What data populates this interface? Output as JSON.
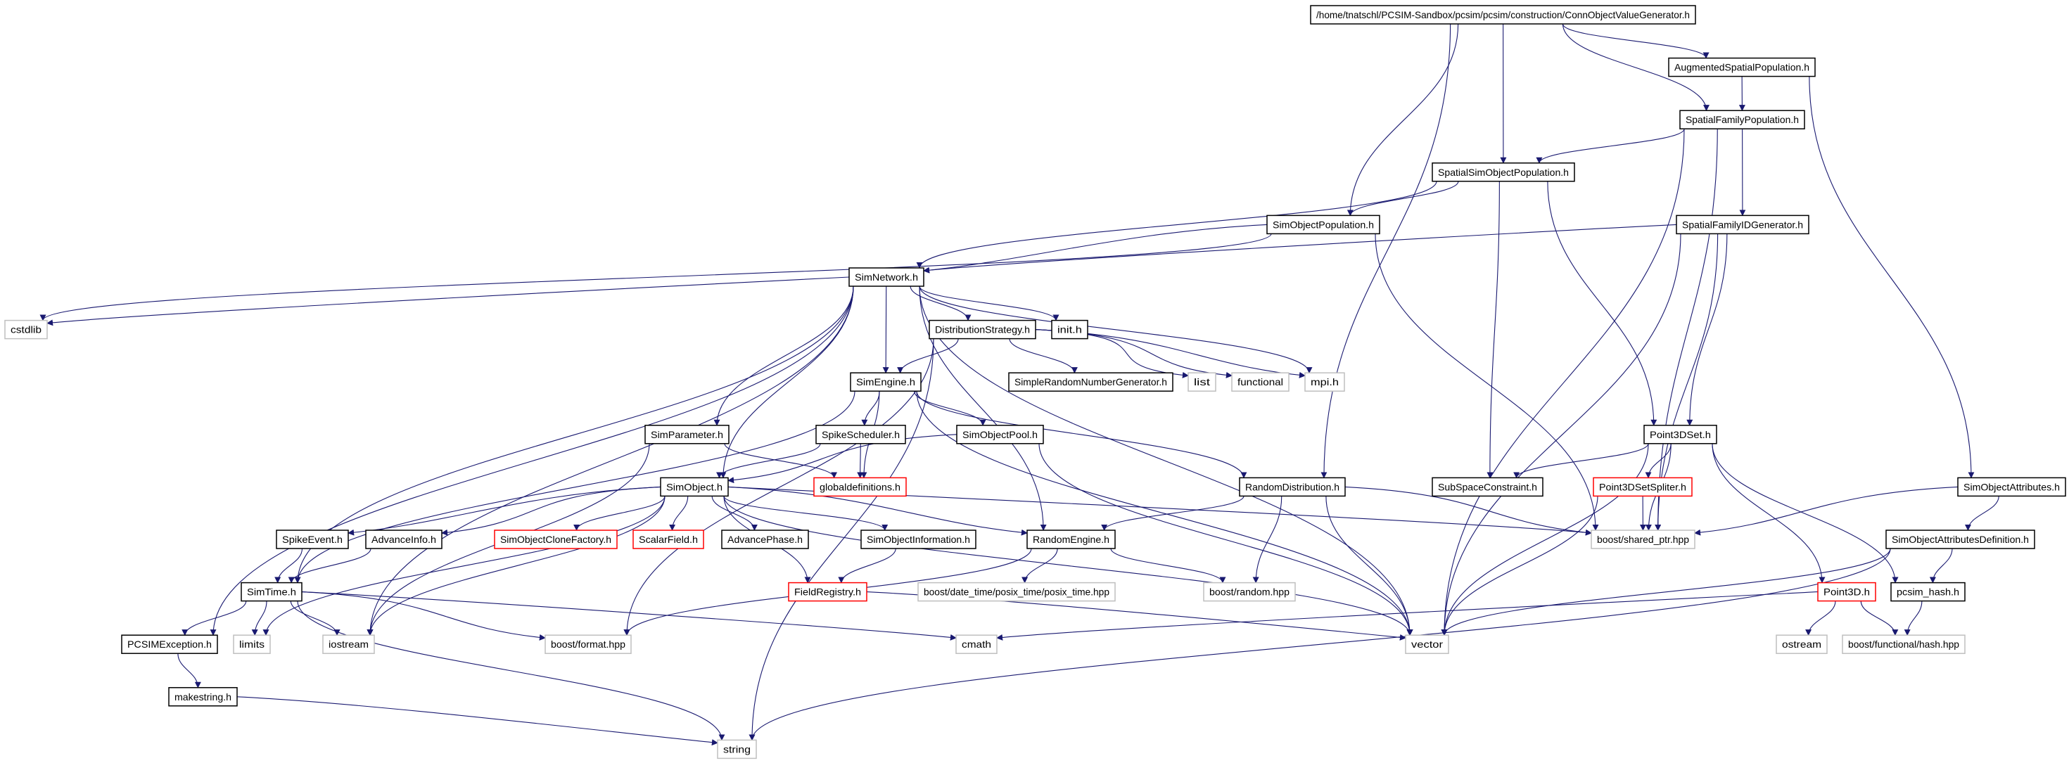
{
  "graph": {
    "colors": {
      "edge": "#191970",
      "root_fill": "#bfbfbf",
      "documented_border": "#000000",
      "incomplete_border": "#ff0000",
      "external_border": "#bfbfbf"
    },
    "nodes": [
      {
        "id": "root",
        "label": "/home/tnatschl/PCSIM-Sandbox/pcsim/pcsim/construction/ConnObjectValueGenerator.h",
        "style": "root"
      },
      {
        "id": "asp",
        "label": "AugmentedSpatialPopulation.h",
        "style": "documented"
      },
      {
        "id": "sfp",
        "label": "SpatialFamilyPopulation.h",
        "style": "documented"
      },
      {
        "id": "ssop",
        "label": "SpatialSimObjectPopulation.h",
        "style": "documented"
      },
      {
        "id": "sop",
        "label": "SimObjectPopulation.h",
        "style": "documented"
      },
      {
        "id": "sfig",
        "label": "SpatialFamilyIDGenerator.h",
        "style": "documented"
      },
      {
        "id": "simnet",
        "label": "SimNetwork.h",
        "style": "documented"
      },
      {
        "id": "cstdlib",
        "label": "cstdlib",
        "style": "external"
      },
      {
        "id": "dist",
        "label": "DistributionStrategy.h",
        "style": "documented"
      },
      {
        "id": "init",
        "label": "init.h",
        "style": "documented"
      },
      {
        "id": "simeng",
        "label": "SimEngine.h",
        "style": "documented"
      },
      {
        "id": "srng",
        "label": "SimpleRandomNumberGenerator.h",
        "style": "documented"
      },
      {
        "id": "list",
        "label": "list",
        "style": "external"
      },
      {
        "id": "functional",
        "label": "functional",
        "style": "external"
      },
      {
        "id": "mpi",
        "label": "mpi.h",
        "style": "external"
      },
      {
        "id": "simparam",
        "label": "SimParameter.h",
        "style": "documented"
      },
      {
        "id": "spikesched",
        "label": "SpikeScheduler.h",
        "style": "documented"
      },
      {
        "id": "sopool",
        "label": "SimObjectPool.h",
        "style": "documented"
      },
      {
        "id": "p3dset",
        "label": "Point3DSet.h",
        "style": "documented"
      },
      {
        "id": "simobj",
        "label": "SimObject.h",
        "style": "documented"
      },
      {
        "id": "globaldef",
        "label": "globaldefinitions.h",
        "style": "incomplete"
      },
      {
        "id": "randdist",
        "label": "RandomDistribution.h",
        "style": "documented"
      },
      {
        "id": "subspace",
        "label": "SubSpaceConstraint.h",
        "style": "documented"
      },
      {
        "id": "p3dspl",
        "label": "Point3DSetSpliter.h",
        "style": "incomplete"
      },
      {
        "id": "soattr",
        "label": "SimObjectAttributes.h",
        "style": "documented"
      },
      {
        "id": "spikeev",
        "label": "SpikeEvent.h",
        "style": "documented"
      },
      {
        "id": "advinfo",
        "label": "AdvanceInfo.h",
        "style": "documented"
      },
      {
        "id": "soclone",
        "label": "SimObjectCloneFactory.h",
        "style": "incomplete"
      },
      {
        "id": "scalar",
        "label": "ScalarField.h",
        "style": "incomplete"
      },
      {
        "id": "advphase",
        "label": "AdvancePhase.h",
        "style": "documented"
      },
      {
        "id": "soinfo",
        "label": "SimObjectInformation.h",
        "style": "documented"
      },
      {
        "id": "randeng",
        "label": "RandomEngine.h",
        "style": "documented"
      },
      {
        "id": "sharedptr",
        "label": "boost/shared_ptr.hpp",
        "style": "external"
      },
      {
        "id": "soattrdef",
        "label": "SimObjectAttributesDefinition.h",
        "style": "documented"
      },
      {
        "id": "simtime",
        "label": "SimTime.h",
        "style": "documented"
      },
      {
        "id": "fieldreg",
        "label": "FieldRegistry.h",
        "style": "incomplete"
      },
      {
        "id": "posix",
        "label": "boost/date_time/posix_time/posix_time.hpp",
        "style": "external"
      },
      {
        "id": "brandom",
        "label": "boost/random.hpp",
        "style": "external"
      },
      {
        "id": "p3d",
        "label": "Point3D.h",
        "style": "incomplete"
      },
      {
        "id": "pcsimhash",
        "label": "pcsim_hash.h",
        "style": "documented"
      },
      {
        "id": "pcsimexc",
        "label": "PCSIMException.h",
        "style": "documented"
      },
      {
        "id": "limits",
        "label": "limits",
        "style": "external"
      },
      {
        "id": "iostream",
        "label": "iostream",
        "style": "external"
      },
      {
        "id": "bformat",
        "label": "boost/format.hpp",
        "style": "external"
      },
      {
        "id": "cmath",
        "label": "cmath",
        "style": "external"
      },
      {
        "id": "vector",
        "label": "vector",
        "style": "external"
      },
      {
        "id": "ostream",
        "label": "ostream",
        "style": "external"
      },
      {
        "id": "bhash",
        "label": "boost/functional/hash.hpp",
        "style": "external"
      },
      {
        "id": "makestring",
        "label": "makestring.h",
        "style": "documented"
      },
      {
        "id": "string",
        "label": "string",
        "style": "external"
      }
    ],
    "edges": [
      [
        "root",
        "sop"
      ],
      [
        "root",
        "ssop"
      ],
      [
        "root",
        "randdist"
      ],
      [
        "root",
        "sfp"
      ],
      [
        "root",
        "asp"
      ],
      [
        "asp",
        "sfp"
      ],
      [
        "asp",
        "soattr"
      ],
      [
        "sfp",
        "ssop"
      ],
      [
        "sfp",
        "sfig"
      ],
      [
        "sfp",
        "sharedptr"
      ],
      [
        "sfp",
        "vector"
      ],
      [
        "ssop",
        "sop"
      ],
      [
        "ssop",
        "simnet"
      ],
      [
        "ssop",
        "subspace"
      ],
      [
        "ssop",
        "p3dset"
      ],
      [
        "sop",
        "simnet"
      ],
      [
        "sop",
        "cstdlib"
      ],
      [
        "sop",
        "sharedptr"
      ],
      [
        "sfig",
        "simnet"
      ],
      [
        "sfig",
        "p3dset"
      ],
      [
        "sfig",
        "sharedptr"
      ],
      [
        "sfig",
        "vector"
      ],
      [
        "simnet",
        "cstdlib"
      ],
      [
        "simnet",
        "dist"
      ],
      [
        "simnet",
        "init"
      ],
      [
        "simnet",
        "simeng"
      ],
      [
        "simnet",
        "mpi"
      ],
      [
        "simnet",
        "vector"
      ],
      [
        "simnet",
        "simobj"
      ],
      [
        "simnet",
        "simparam"
      ],
      [
        "simnet",
        "simtime"
      ],
      [
        "simnet",
        "pcsimexc"
      ],
      [
        "simnet",
        "iostream"
      ],
      [
        "simnet",
        "randeng"
      ],
      [
        "dist",
        "simeng"
      ],
      [
        "dist",
        "srng"
      ],
      [
        "dist",
        "list"
      ],
      [
        "dist",
        "functional"
      ],
      [
        "dist",
        "mpi"
      ],
      [
        "dist",
        "string"
      ],
      [
        "dist",
        "bformat"
      ],
      [
        "simeng",
        "spikesched"
      ],
      [
        "simeng",
        "sopool"
      ],
      [
        "simeng",
        "globaldef"
      ],
      [
        "simeng",
        "simtime"
      ],
      [
        "simeng",
        "randdist"
      ],
      [
        "simeng",
        "vector"
      ],
      [
        "simparam",
        "globaldef"
      ],
      [
        "simparam",
        "iostream"
      ],
      [
        "spikesched",
        "simobj"
      ],
      [
        "spikesched",
        "globaldef"
      ],
      [
        "sopool",
        "simobj"
      ],
      [
        "sopool",
        "vector"
      ],
      [
        "simobj",
        "spikeev"
      ],
      [
        "simobj",
        "advinfo"
      ],
      [
        "simobj",
        "soclone"
      ],
      [
        "simobj",
        "scalar"
      ],
      [
        "simobj",
        "advphase"
      ],
      [
        "simobj",
        "soinfo"
      ],
      [
        "simobj",
        "randeng"
      ],
      [
        "simobj",
        "fieldreg"
      ],
      [
        "simobj",
        "sharedptr"
      ],
      [
        "simobj",
        "limits"
      ],
      [
        "simobj",
        "iostream"
      ],
      [
        "simobj",
        "vector"
      ],
      [
        "spikeev",
        "simtime"
      ],
      [
        "advinfo",
        "simtime"
      ],
      [
        "soinfo",
        "fieldreg"
      ],
      [
        "randeng",
        "posix"
      ],
      [
        "randeng",
        "brandom"
      ],
      [
        "randeng",
        "bformat"
      ],
      [
        "randdist",
        "randeng"
      ],
      [
        "randdist",
        "brandom"
      ],
      [
        "randdist",
        "vector"
      ],
      [
        "randdist",
        "sharedptr"
      ],
      [
        "fieldreg",
        "vector"
      ],
      [
        "simtime",
        "pcsimexc"
      ],
      [
        "simtime",
        "limits"
      ],
      [
        "simtime",
        "iostream"
      ],
      [
        "simtime",
        "bformat"
      ],
      [
        "simtime",
        "cmath"
      ],
      [
        "simtime",
        "string"
      ],
      [
        "pcsimexc",
        "makestring"
      ],
      [
        "makestring",
        "string"
      ],
      [
        "p3dset",
        "subspace"
      ],
      [
        "p3dset",
        "p3dspl"
      ],
      [
        "p3dset",
        "sharedptr"
      ],
      [
        "p3dset",
        "p3d"
      ],
      [
        "p3dset",
        "pcsimhash"
      ],
      [
        "p3dset",
        "vector"
      ],
      [
        "p3dspl",
        "sharedptr"
      ],
      [
        "p3dspl",
        "vector"
      ],
      [
        "soattr",
        "sharedptr"
      ],
      [
        "soattr",
        "soattrdef"
      ],
      [
        "soattrdef",
        "pcsimhash"
      ],
      [
        "soattrdef",
        "vector"
      ],
      [
        "soattrdef",
        "string"
      ],
      [
        "p3d",
        "ostream"
      ],
      [
        "p3d",
        "bhash"
      ],
      [
        "p3d",
        "cmath"
      ],
      [
        "pcsimhash",
        "bhash"
      ]
    ]
  }
}
